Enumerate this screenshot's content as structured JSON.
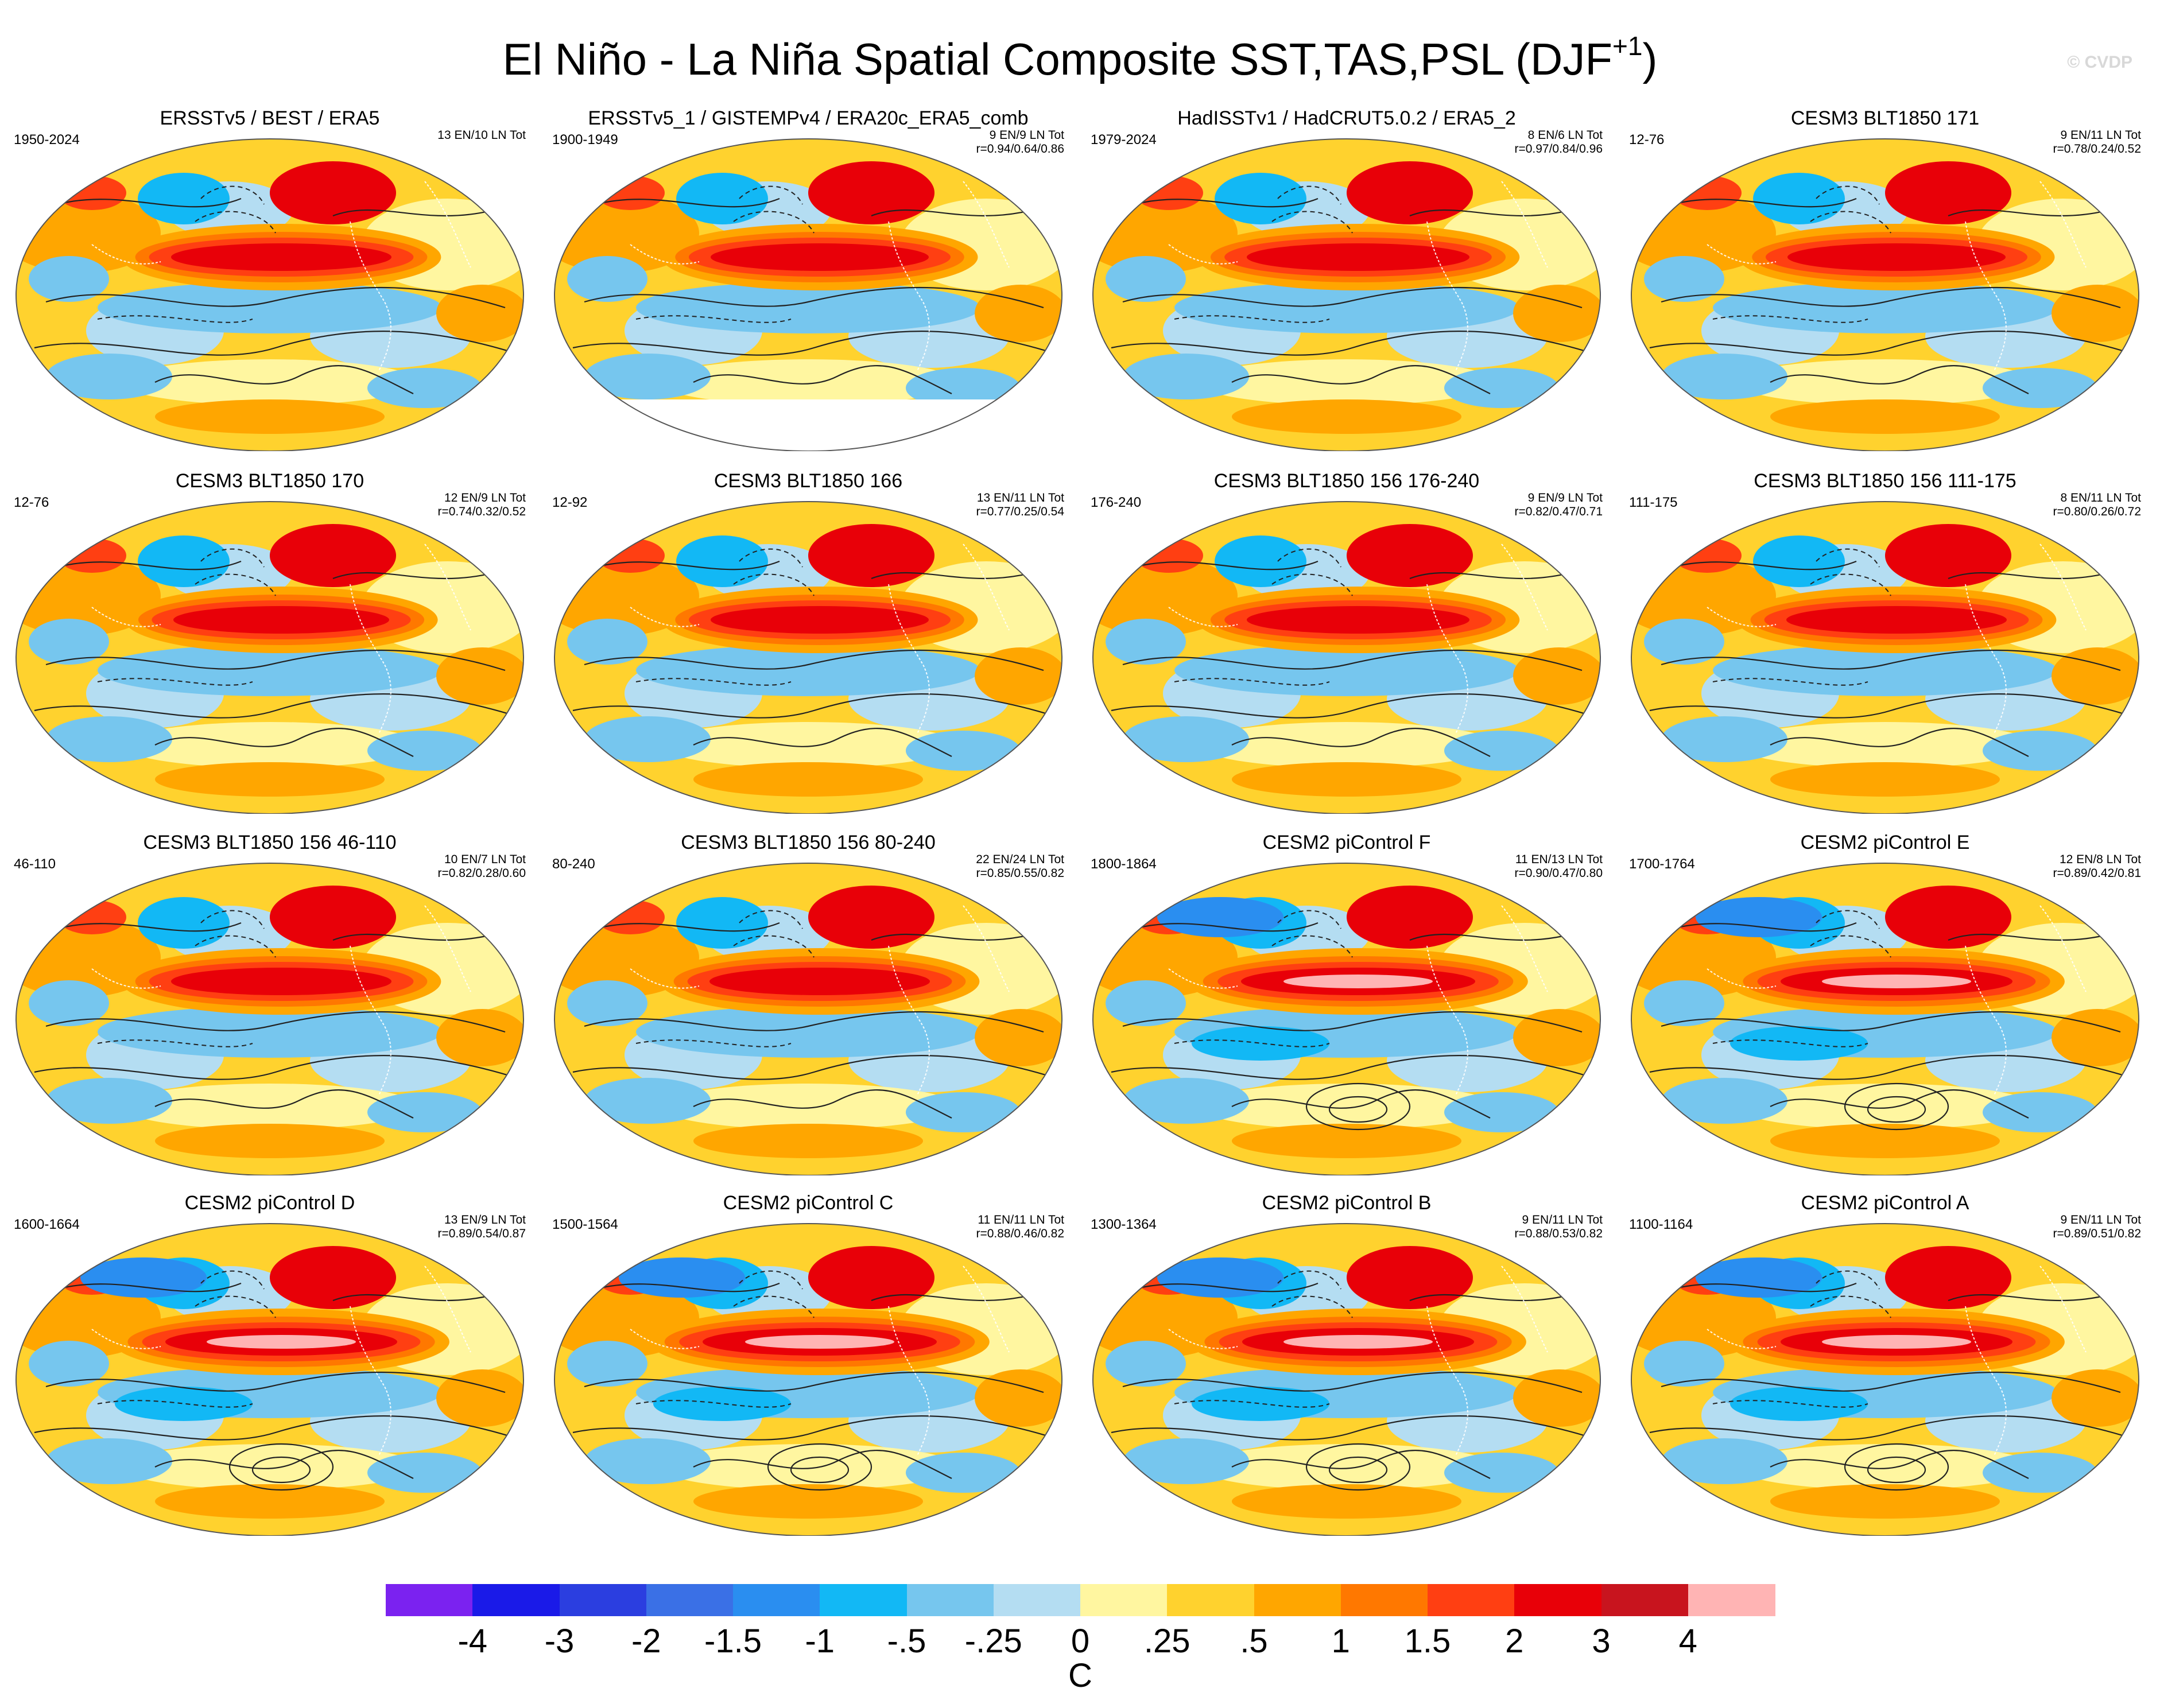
{
  "title": {
    "main": "El Niño - La Niña Spatial Composite SST,TAS,PSL (DJF",
    "superscript": "+1",
    "close": ")"
  },
  "watermark": "© CVDP",
  "panels": [
    {
      "title": "ERSSTv5 / BEST / ERA5",
      "period": "1950-2024",
      "counts": "13 EN/10 LN Tot",
      "corr": "",
      "intensity": 0.55,
      "missing_south": false
    },
    {
      "title": "ERSSTv5_1 / GISTEMPv4 / ERA20c_ERA5_comb",
      "period": "1900-1949",
      "counts": "9 EN/9 LN Tot",
      "corr": "r=0.94/0.64/0.86",
      "intensity": 0.5,
      "missing_south": true
    },
    {
      "title": "HadISSTv1 / HadCRUT5.0.2 / ERA5_2",
      "period": "1979-2024",
      "counts": "8 EN/6 LN Tot",
      "corr": "r=0.97/0.84/0.96",
      "intensity": 0.6,
      "missing_south": false
    },
    {
      "title": "CESM3 BLT1850 171",
      "period": "12-76",
      "counts": "9 EN/11 LN Tot",
      "corr": "r=0.78/0.24/0.52",
      "intensity": 0.5,
      "missing_south": false
    },
    {
      "title": "CESM3 BLT1850 170",
      "period": "12-76",
      "counts": "12 EN/9 LN Tot",
      "corr": "r=0.74/0.32/0.52",
      "intensity": 0.45,
      "missing_south": false
    },
    {
      "title": "CESM3 BLT1850 166",
      "period": "12-92",
      "counts": "13 EN/11 LN Tot",
      "corr": "r=0.77/0.25/0.54",
      "intensity": 0.5,
      "missing_south": false
    },
    {
      "title": "CESM3 BLT1850 156 176-240",
      "period": "176-240",
      "counts": "9 EN/9 LN Tot",
      "corr": "r=0.82/0.47/0.71",
      "intensity": 0.6,
      "missing_south": false
    },
    {
      "title": "CESM3 BLT1850 156 111-175",
      "period": "111-175",
      "counts": "8 EN/11 LN Tot",
      "corr": "r=0.80/0.26/0.72",
      "intensity": 0.55,
      "missing_south": false
    },
    {
      "title": "CESM3 BLT1850 156 46-110",
      "period": "46-110",
      "counts": "10 EN/7 LN Tot",
      "corr": "r=0.82/0.28/0.60",
      "intensity": 0.55,
      "missing_south": false
    },
    {
      "title": "CESM3 BLT1850 156 80-240",
      "period": "80-240",
      "counts": "22 EN/24 LN Tot",
      "corr": "r=0.85/0.55/0.82",
      "intensity": 0.55,
      "missing_south": false
    },
    {
      "title": "CESM2 piControl F",
      "period": "1800-1864",
      "counts": "11 EN/13 LN Tot",
      "corr": "r=0.90/0.47/0.80",
      "intensity": 0.85,
      "missing_south": false
    },
    {
      "title": "CESM2 piControl E",
      "period": "1700-1764",
      "counts": "12 EN/8 LN Tot",
      "corr": "r=0.89/0.42/0.81",
      "intensity": 0.8,
      "missing_south": false
    },
    {
      "title": "CESM2 piControl D",
      "period": "1600-1664",
      "counts": "13 EN/9 LN Tot",
      "corr": "r=0.89/0.54/0.87",
      "intensity": 0.8,
      "missing_south": false
    },
    {
      "title": "CESM2 piControl C",
      "period": "1500-1564",
      "counts": "11 EN/11 LN Tot",
      "corr": "r=0.88/0.46/0.82",
      "intensity": 0.85,
      "missing_south": false
    },
    {
      "title": "CESM2 piControl B",
      "period": "1300-1364",
      "counts": "9 EN/11 LN Tot",
      "corr": "r=0.88/0.53/0.82",
      "intensity": 0.8,
      "missing_south": false
    },
    {
      "title": "CESM2 piControl A",
      "period": "1100-1164",
      "counts": "9 EN/11 LN Tot",
      "corr": "r=0.89/0.51/0.82",
      "intensity": 0.8,
      "missing_south": false
    }
  ],
  "colorbar": {
    "colors": [
      "#7b22f0",
      "#1a1ae8",
      "#2b3ee0",
      "#3a70e6",
      "#2a8ef0",
      "#12b8f5",
      "#76c6ee",
      "#b4ddf2",
      "#fff6a0",
      "#ffd22e",
      "#ffa600",
      "#ff7800",
      "#ff3f12",
      "#e80008",
      "#c8141e",
      "#ffb4b4"
    ],
    "ticks": [
      "-4",
      "-3",
      "-2",
      "-1.5",
      "-1",
      "-.5",
      "-.25",
      "0",
      ".25",
      ".5",
      "1",
      "1.5",
      "2",
      "3",
      "4"
    ],
    "units": "C"
  }
}
